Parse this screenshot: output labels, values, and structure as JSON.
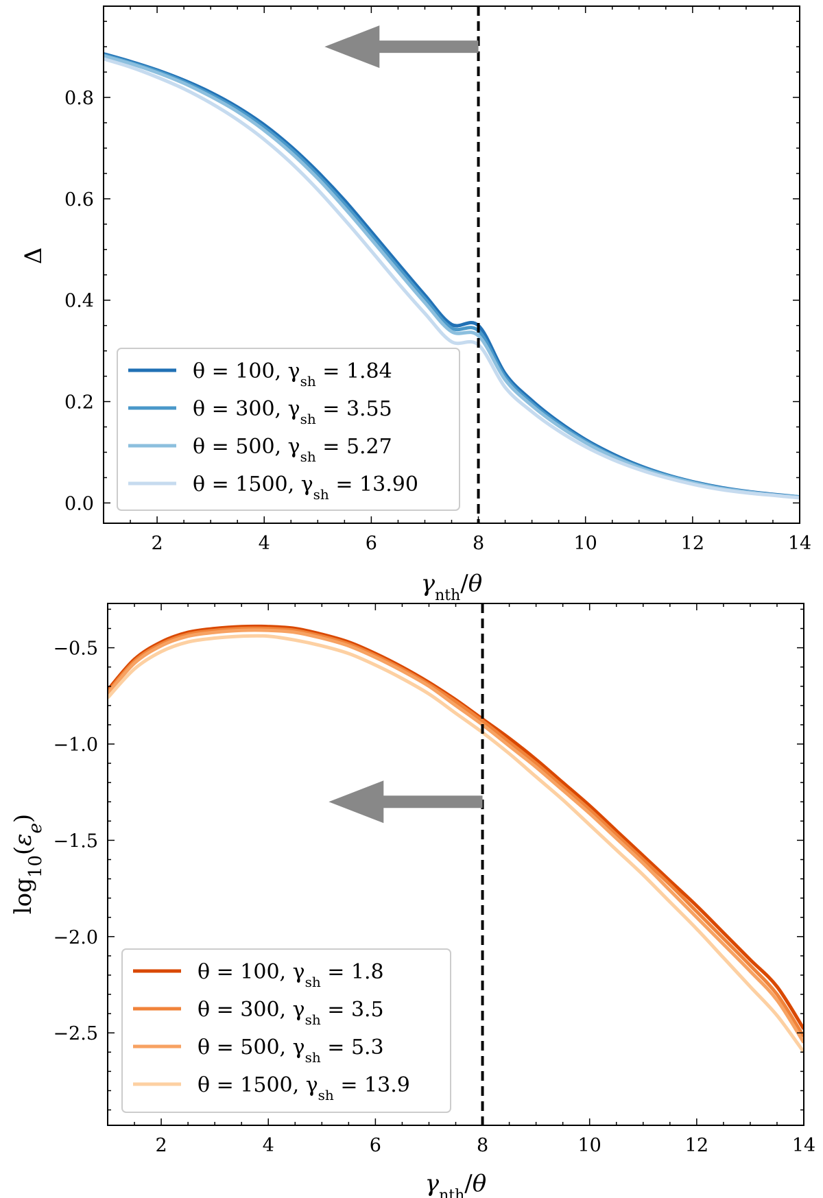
{
  "chart_data": [
    {
      "type": "line",
      "title": "",
      "xlabel": "γnth/θ",
      "ylabel": "Δ",
      "xlim": [
        1,
        14
      ],
      "ylim": [
        -0.04,
        0.98
      ],
      "grid": false,
      "x_ticks": [
        2,
        4,
        6,
        8,
        10,
        12,
        14
      ],
      "y_ticks": [
        0.0,
        0.2,
        0.4,
        0.6,
        0.8
      ],
      "x_tick_labels": [
        "2",
        "4",
        "6",
        "8",
        "10",
        "12",
        "14"
      ],
      "y_tick_labels": [
        "0.0",
        "0.2",
        "0.4",
        "0.6",
        "0.8"
      ],
      "legend_position": "lower-left",
      "vline": {
        "x": 8,
        "style": "dashed",
        "color": "#000000"
      },
      "arrow": {
        "from_x": 8,
        "to_x": 5,
        "y": 0.9,
        "color": "#888888",
        "direction": "left"
      },
      "x": [
        1,
        1.5,
        2,
        2.5,
        3,
        3.5,
        4,
        4.5,
        5,
        5.5,
        6,
        6.5,
        7,
        7.5,
        8,
        8.5,
        9,
        9.5,
        10,
        10.5,
        11,
        11.5,
        12,
        12.5,
        13,
        13.5,
        14
      ],
      "series": [
        {
          "name": "θ = 100, γsh = 1.84",
          "theta": "100",
          "gamma_sh": "1.84",
          "color": "#2171b5",
          "values": [
            0.886,
            0.871,
            0.854,
            0.834,
            0.81,
            0.781,
            0.746,
            0.703,
            0.653,
            0.597,
            0.535,
            0.472,
            0.41,
            0.352,
            0.35,
            0.255,
            0.202,
            0.16,
            0.125,
            0.097,
            0.074,
            0.056,
            0.042,
            0.031,
            0.023,
            0.017,
            0.012
          ]
        },
        {
          "name": "θ = 300, γsh = 3.55",
          "theta": "300",
          "gamma_sh": "3.55",
          "color": "#4a98c9",
          "values": [
            0.884,
            0.869,
            0.852,
            0.831,
            0.806,
            0.777,
            0.741,
            0.698,
            0.647,
            0.59,
            0.528,
            0.465,
            0.403,
            0.345,
            0.34,
            0.249,
            0.197,
            0.156,
            0.122,
            0.094,
            0.072,
            0.055,
            0.041,
            0.03,
            0.022,
            0.016,
            0.012
          ]
        },
        {
          "name": "θ = 500, γsh = 5.27",
          "theta": "500",
          "gamma_sh": "5.27",
          "color": "#8cbfde",
          "values": [
            0.882,
            0.867,
            0.849,
            0.828,
            0.802,
            0.772,
            0.735,
            0.691,
            0.64,
            0.582,
            0.52,
            0.457,
            0.395,
            0.338,
            0.33,
            0.243,
            0.192,
            0.152,
            0.119,
            0.092,
            0.07,
            0.053,
            0.04,
            0.029,
            0.022,
            0.016,
            0.011
          ]
        },
        {
          "name": "θ = 1500, γsh = 13.90",
          "theta": "1500",
          "gamma_sh": "13.90",
          "color": "#c6dbef",
          "values": [
            0.876,
            0.86,
            0.84,
            0.817,
            0.789,
            0.756,
            0.717,
            0.671,
            0.618,
            0.559,
            0.497,
            0.434,
            0.374,
            0.318,
            0.312,
            0.228,
            0.18,
            0.142,
            0.111,
            0.086,
            0.066,
            0.05,
            0.037,
            0.027,
            0.02,
            0.015,
            0.01
          ]
        }
      ]
    },
    {
      "type": "line",
      "title": "",
      "xlabel": "γnth/θ",
      "ylabel": "log10(εe)",
      "xlim": [
        1,
        14
      ],
      "ylim": [
        -2.98,
        -0.27
      ],
      "grid": false,
      "x_ticks": [
        2,
        4,
        6,
        8,
        10,
        12,
        14
      ],
      "y_ticks": [
        -0.5,
        -1.0,
        -1.5,
        -2.0,
        -2.5
      ],
      "x_tick_labels": [
        "2",
        "4",
        "6",
        "8",
        "10",
        "12",
        "14"
      ],
      "y_tick_labels": [
        "−0.5",
        "−1.0",
        "−1.5",
        "−2.0",
        "−2.5"
      ],
      "legend_position": "lower-left",
      "vline": {
        "x": 8,
        "style": "dashed",
        "color": "#000000"
      },
      "arrow": {
        "from_x": 8,
        "to_x": 5,
        "y": -1.3,
        "color": "#888888",
        "direction": "left"
      },
      "x": [
        1,
        1.5,
        2,
        2.5,
        3,
        3.5,
        4,
        4.5,
        5,
        5.5,
        6,
        6.5,
        7,
        7.5,
        8,
        8.5,
        9,
        9.5,
        10,
        10.5,
        11,
        11.5,
        12,
        12.5,
        13,
        13.5,
        14
      ],
      "series": [
        {
          "name": "θ = 100, γsh = 1.8",
          "theta": "100",
          "gamma_sh": "1.8",
          "color": "#d94801",
          "values": [
            -0.72,
            -0.56,
            -0.47,
            -0.42,
            -0.4,
            -0.39,
            -0.39,
            -0.4,
            -0.43,
            -0.47,
            -0.53,
            -0.6,
            -0.68,
            -0.77,
            -0.87,
            -0.97,
            -1.08,
            -1.2,
            -1.32,
            -1.45,
            -1.58,
            -1.71,
            -1.84,
            -1.98,
            -2.12,
            -2.26,
            -2.48
          ]
        },
        {
          "name": "θ = 300, γsh = 3.5",
          "theta": "300",
          "gamma_sh": "3.5",
          "color": "#f0833a",
          "values": [
            -0.73,
            -0.57,
            -0.48,
            -0.43,
            -0.41,
            -0.4,
            -0.4,
            -0.41,
            -0.44,
            -0.48,
            -0.54,
            -0.61,
            -0.69,
            -0.78,
            -0.88,
            -0.99,
            -1.1,
            -1.22,
            -1.34,
            -1.47,
            -1.6,
            -1.73,
            -1.87,
            -2.01,
            -2.15,
            -2.3,
            -2.52
          ]
        },
        {
          "name": "θ = 500, γsh = 5.3",
          "theta": "500",
          "gamma_sh": "5.3",
          "color": "#f7a262",
          "values": [
            -0.74,
            -0.58,
            -0.49,
            -0.44,
            -0.42,
            -0.41,
            -0.41,
            -0.42,
            -0.45,
            -0.49,
            -0.55,
            -0.62,
            -0.7,
            -0.8,
            -0.9,
            -1.01,
            -1.12,
            -1.24,
            -1.36,
            -1.49,
            -1.62,
            -1.76,
            -1.9,
            -2.04,
            -2.18,
            -2.33,
            -2.55
          ]
        },
        {
          "name": "θ = 1500, γsh = 13.9",
          "theta": "1500",
          "gamma_sh": "13.9",
          "color": "#fdd0a2",
          "values": [
            -0.76,
            -0.61,
            -0.52,
            -0.47,
            -0.45,
            -0.44,
            -0.44,
            -0.46,
            -0.49,
            -0.53,
            -0.59,
            -0.66,
            -0.74,
            -0.84,
            -0.94,
            -1.05,
            -1.17,
            -1.29,
            -1.42,
            -1.55,
            -1.68,
            -1.82,
            -1.96,
            -2.11,
            -2.26,
            -2.41,
            -2.6
          ]
        }
      ]
    }
  ]
}
